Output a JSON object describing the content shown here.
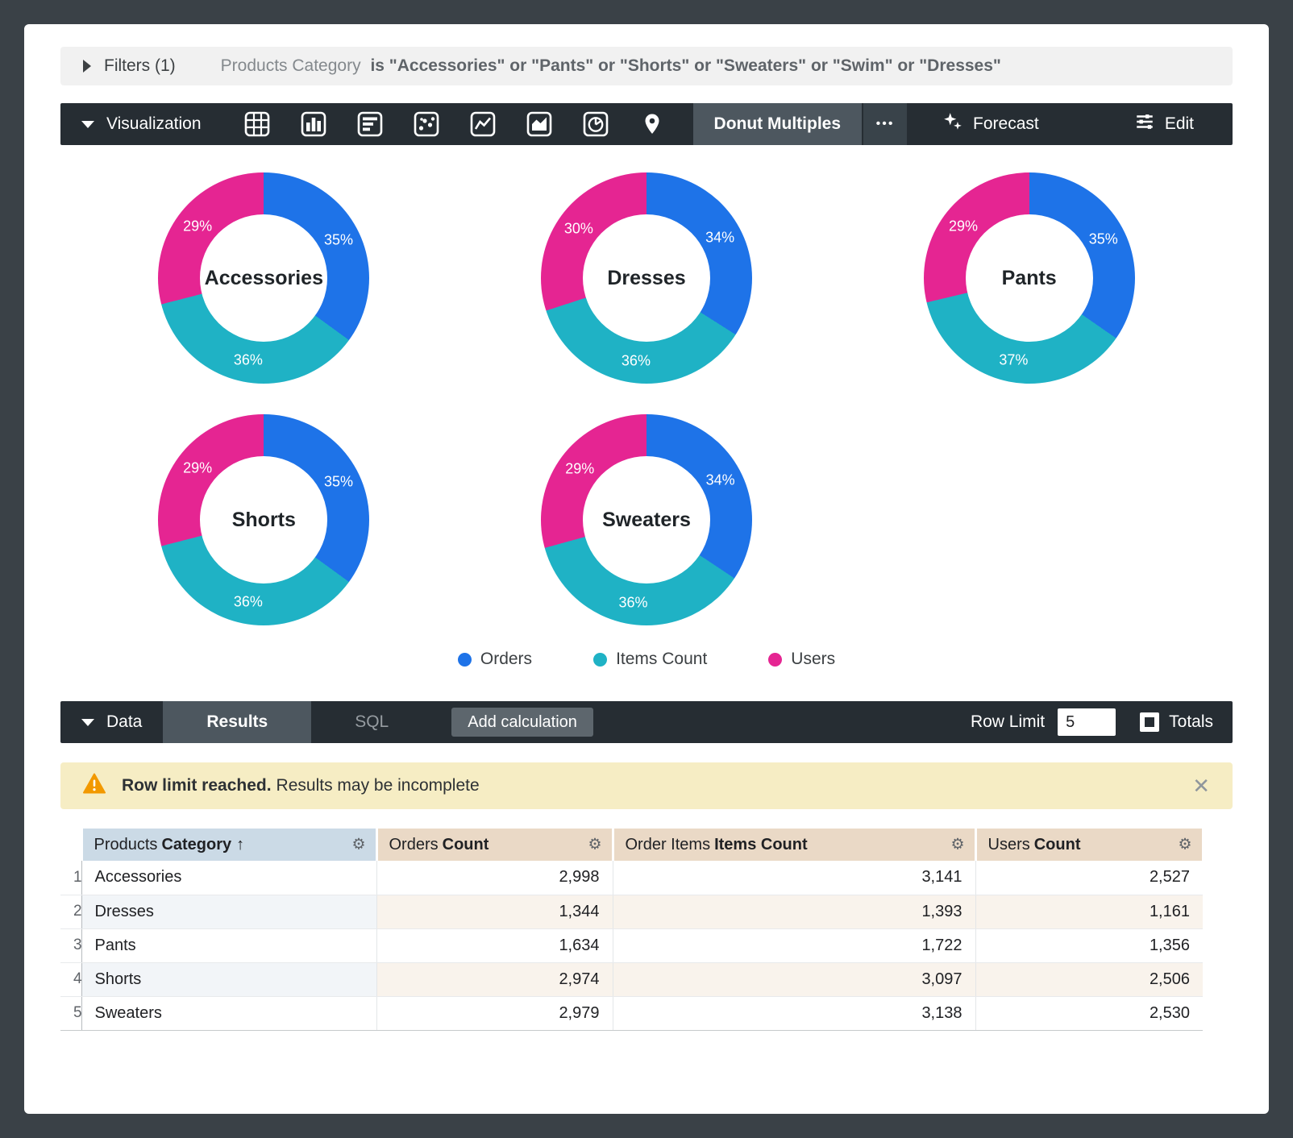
{
  "filters": {
    "label": "Filters (1)",
    "field": "Products Category",
    "condition": "is \"Accessories\" or \"Pants\" or \"Shorts\" or \"Sweaters\" or \"Swim\" or \"Dresses\""
  },
  "viz_bar": {
    "section_label": "Visualization",
    "selected_type": "Donut Multiples",
    "more_label": "•••",
    "forecast_label": "Forecast",
    "edit_label": "Edit"
  },
  "chart_data": {
    "type": "pie",
    "variant": "donut_multiples",
    "legend_position": "bottom",
    "legend": [
      {
        "name": "Orders",
        "color": "#1e73e8"
      },
      {
        "name": "Items Count",
        "color": "#1fb2c5"
      },
      {
        "name": "Users",
        "color": "#e52592"
      }
    ],
    "donuts": [
      {
        "title": "Accessories",
        "percents": {
          "Orders": 35,
          "Items Count": 36,
          "Users": 29
        }
      },
      {
        "title": "Dresses",
        "percents": {
          "Orders": 34,
          "Items Count": 36,
          "Users": 30
        }
      },
      {
        "title": "Pants",
        "percents": {
          "Orders": 35,
          "Items Count": 37,
          "Users": 29
        }
      },
      {
        "title": "Shorts",
        "percents": {
          "Orders": 35,
          "Items Count": 36,
          "Users": 29
        }
      },
      {
        "title": "Sweaters",
        "percents": {
          "Orders": 34,
          "Items Count": 36,
          "Users": 29
        }
      }
    ]
  },
  "data_bar": {
    "section_label": "Data",
    "results_tab": "Results",
    "sql_tab": "SQL",
    "add_calculation": "Add calculation",
    "row_limit_label": "Row Limit",
    "row_limit_value": "5",
    "totals_label": "Totals"
  },
  "warning": {
    "bold": "Row limit reached.",
    "text": "Results may be incomplete",
    "close": "✕"
  },
  "table": {
    "columns": [
      {
        "prefix": "Products",
        "bold": "Category",
        "sort": "↑",
        "kind": "dimension"
      },
      {
        "prefix": "Orders",
        "bold": "Count",
        "kind": "measure"
      },
      {
        "prefix": "Order Items",
        "bold": "Items Count",
        "kind": "measure"
      },
      {
        "prefix": "Users",
        "bold": "Count",
        "kind": "measure"
      }
    ],
    "gear_icon": "⚙",
    "rows": [
      {
        "num": "1",
        "cells": [
          "Accessories",
          "2,998",
          "3,141",
          "2,527"
        ]
      },
      {
        "num": "2",
        "cells": [
          "Dresses",
          "1,344",
          "1,393",
          "1,161"
        ]
      },
      {
        "num": "3",
        "cells": [
          "Pants",
          "1,634",
          "1,722",
          "1,356"
        ]
      },
      {
        "num": "4",
        "cells": [
          "Shorts",
          "2,974",
          "3,097",
          "2,506"
        ]
      },
      {
        "num": "5",
        "cells": [
          "Sweaters",
          "2,979",
          "3,138",
          "2,530"
        ]
      }
    ]
  }
}
